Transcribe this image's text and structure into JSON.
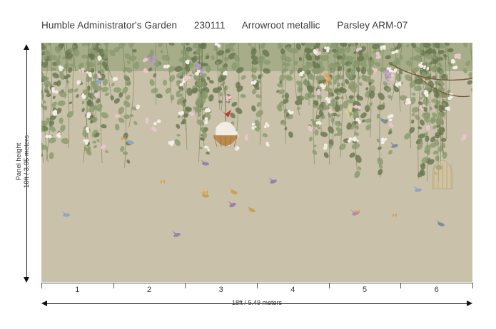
{
  "header": {
    "collection": "Humble Administrator's Garden",
    "code": "230111",
    "colorway": "Arrowroot metallic",
    "variant": "Parsley ARM-07"
  },
  "dimensions": {
    "height_label": "Panel height\n10ft / 3.05 meters",
    "width_label": "18ft / 5.49 meters"
  },
  "panels": [
    "1",
    "2",
    "3",
    "4",
    "5",
    "6"
  ],
  "colors": {
    "background": "#c9c1aa",
    "foliage": "#8a9a6e",
    "foliage_dark": "#66764e",
    "blossom": "#f2eee6",
    "blossom_pink": "#e8c6cc",
    "wisteria": "#b79ac6",
    "basket": "#b98a4e",
    "ribbon": "#c0392b",
    "cage": "#d8c69a"
  },
  "mural": {
    "description_icon": "chinoiserie-vine-mural"
  }
}
